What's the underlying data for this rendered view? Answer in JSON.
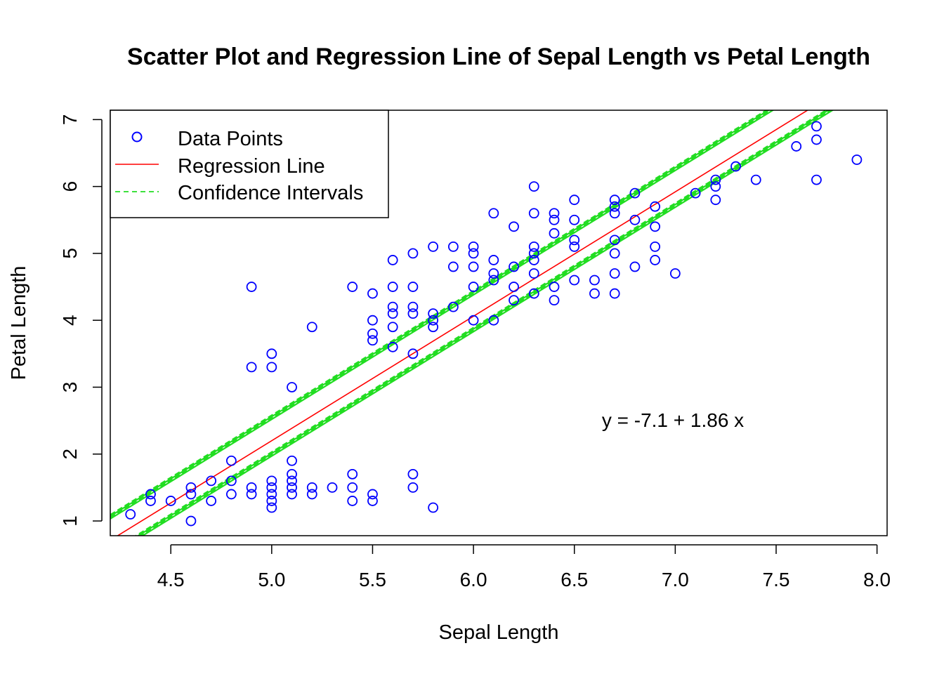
{
  "chart_data": {
    "type": "scatter",
    "title": "Scatter Plot and Regression Line of Sepal Length vs Petal Length",
    "xlabel": "Sepal Length",
    "ylabel": "Petal Length",
    "xlim": [
      4.2,
      8.05
    ],
    "ylim": [
      0.78,
      7.14
    ],
    "xticks": [
      "4.5",
      "5.0",
      "5.5",
      "6.0",
      "6.5",
      "7.0",
      "7.5",
      "8.0"
    ],
    "yticks": [
      "1",
      "2",
      "3",
      "4",
      "5",
      "6",
      "7"
    ],
    "legend": {
      "placement": "top-left",
      "entries": [
        "Data Points",
        "Regression Line",
        "Confidence Intervals"
      ]
    },
    "annotation": "y = -7.1 + 1.86 x",
    "colors": {
      "points": "#0000ff",
      "regression": "#ff0000",
      "confidence": "#22dd22"
    },
    "regression": {
      "intercept": -7.1,
      "slope": 1.86
    },
    "confidence_lower": {
      "intercept": -7.3,
      "slope": 1.86
    },
    "confidence_upper": {
      "intercept": -6.75,
      "slope": 1.86
    },
    "series": [
      {
        "name": "Data Points",
        "points": [
          [
            4.3,
            1.1
          ],
          [
            4.4,
            1.3
          ],
          [
            4.4,
            1.4
          ],
          [
            4.5,
            1.3
          ],
          [
            4.6,
            1.0
          ],
          [
            4.6,
            1.4
          ],
          [
            4.6,
            1.5
          ],
          [
            4.7,
            1.3
          ],
          [
            4.7,
            1.6
          ],
          [
            4.8,
            1.4
          ],
          [
            4.8,
            1.6
          ],
          [
            4.8,
            1.9
          ],
          [
            4.9,
            1.4
          ],
          [
            4.9,
            1.5
          ],
          [
            4.9,
            3.3
          ],
          [
            4.9,
            4.5
          ],
          [
            5.0,
            1.2
          ],
          [
            5.0,
            1.3
          ],
          [
            5.0,
            1.4
          ],
          [
            5.0,
            1.5
          ],
          [
            5.0,
            1.6
          ],
          [
            5.0,
            3.3
          ],
          [
            5.0,
            3.5
          ],
          [
            5.1,
            1.4
          ],
          [
            5.1,
            1.5
          ],
          [
            5.1,
            1.6
          ],
          [
            5.1,
            1.7
          ],
          [
            5.1,
            1.9
          ],
          [
            5.1,
            3.0
          ],
          [
            5.2,
            1.4
          ],
          [
            5.2,
            1.5
          ],
          [
            5.2,
            3.9
          ],
          [
            5.3,
            1.5
          ],
          [
            5.4,
            1.3
          ],
          [
            5.4,
            1.5
          ],
          [
            5.4,
            1.7
          ],
          [
            5.4,
            4.5
          ],
          [
            5.5,
            1.3
          ],
          [
            5.5,
            1.4
          ],
          [
            5.5,
            3.7
          ],
          [
            5.5,
            3.8
          ],
          [
            5.5,
            4.0
          ],
          [
            5.5,
            4.4
          ],
          [
            5.6,
            3.6
          ],
          [
            5.6,
            3.9
          ],
          [
            5.6,
            4.1
          ],
          [
            5.6,
            4.2
          ],
          [
            5.6,
            4.5
          ],
          [
            5.6,
            4.9
          ],
          [
            5.7,
            1.5
          ],
          [
            5.7,
            1.7
          ],
          [
            5.7,
            3.5
          ],
          [
            5.7,
            4.1
          ],
          [
            5.7,
            4.2
          ],
          [
            5.7,
            4.5
          ],
          [
            5.7,
            5.0
          ],
          [
            5.8,
            1.2
          ],
          [
            5.8,
            3.9
          ],
          [
            5.8,
            4.0
          ],
          [
            5.8,
            4.1
          ],
          [
            5.8,
            5.1
          ],
          [
            5.9,
            4.2
          ],
          [
            5.9,
            4.8
          ],
          [
            5.9,
            5.1
          ],
          [
            6.0,
            4.0
          ],
          [
            6.0,
            4.5
          ],
          [
            6.0,
            4.8
          ],
          [
            6.0,
            5.0
          ],
          [
            6.0,
            5.1
          ],
          [
            6.1,
            4.0
          ],
          [
            6.1,
            4.6
          ],
          [
            6.1,
            4.7
          ],
          [
            6.1,
            4.9
          ],
          [
            6.1,
            5.6
          ],
          [
            6.2,
            4.3
          ],
          [
            6.2,
            4.5
          ],
          [
            6.2,
            4.8
          ],
          [
            6.2,
            5.4
          ],
          [
            6.3,
            4.4
          ],
          [
            6.3,
            4.7
          ],
          [
            6.3,
            4.9
          ],
          [
            6.3,
            5.0
          ],
          [
            6.3,
            5.1
          ],
          [
            6.3,
            5.6
          ],
          [
            6.3,
            6.0
          ],
          [
            6.4,
            4.3
          ],
          [
            6.4,
            4.5
          ],
          [
            6.4,
            5.3
          ],
          [
            6.4,
            5.5
          ],
          [
            6.4,
            5.6
          ],
          [
            6.5,
            4.6
          ],
          [
            6.5,
            5.1
          ],
          [
            6.5,
            5.2
          ],
          [
            6.5,
            5.5
          ],
          [
            6.5,
            5.8
          ],
          [
            6.6,
            4.4
          ],
          [
            6.6,
            4.6
          ],
          [
            6.7,
            4.4
          ],
          [
            6.7,
            4.7
          ],
          [
            6.7,
            5.0
          ],
          [
            6.7,
            5.2
          ],
          [
            6.7,
            5.6
          ],
          [
            6.7,
            5.7
          ],
          [
            6.7,
            5.8
          ],
          [
            6.8,
            4.8
          ],
          [
            6.8,
            5.5
          ],
          [
            6.8,
            5.9
          ],
          [
            6.9,
            4.9
          ],
          [
            6.9,
            5.1
          ],
          [
            6.9,
            5.4
          ],
          [
            6.9,
            5.7
          ],
          [
            7.0,
            4.7
          ],
          [
            7.1,
            5.9
          ],
          [
            7.2,
            5.8
          ],
          [
            7.2,
            6.0
          ],
          [
            7.2,
            6.1
          ],
          [
            7.3,
            6.3
          ],
          [
            7.4,
            6.1
          ],
          [
            7.6,
            6.6
          ],
          [
            7.7,
            6.1
          ],
          [
            7.7,
            6.7
          ],
          [
            7.7,
            6.9
          ],
          [
            7.9,
            6.4
          ]
        ]
      }
    ]
  }
}
